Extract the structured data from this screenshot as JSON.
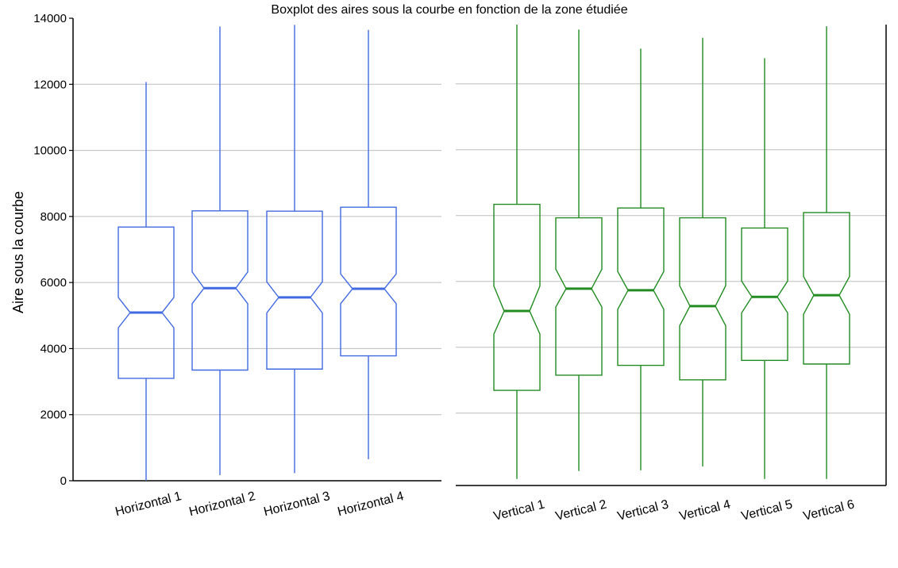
{
  "title": "Boxplot des aires sous la courbe en fonction de la zone étudiée",
  "chart_data": [
    {
      "type": "boxplot",
      "panel": "left",
      "ylabel": "Aire sous la courbe",
      "ylim": [
        0,
        14000
      ],
      "yticks": [
        "0",
        "2000",
        "4000",
        "6000",
        "8000",
        "10000",
        "12000",
        "14000"
      ],
      "grid": "horizontal",
      "color": "#4169e1",
      "notched": true,
      "boxes": [
        {
          "label": "Horizontal 1",
          "whislo": 0,
          "q1": 3100,
          "notch_lo": 4630,
          "med": 5090,
          "notch_hi": 5550,
          "q3": 7680,
          "whishi": 12070
        },
        {
          "label": "Horizontal 2",
          "whislo": 170,
          "q1": 3350,
          "notch_lo": 5360,
          "med": 5830,
          "notch_hi": 6320,
          "q3": 8170,
          "whishi": 13750
        },
        {
          "label": "Horizontal 3",
          "whislo": 230,
          "q1": 3380,
          "notch_lo": 5080,
          "med": 5550,
          "notch_hi": 6020,
          "q3": 8160,
          "whishi": 13800
        },
        {
          "label": "Horizontal 4",
          "whislo": 650,
          "q1": 3780,
          "notch_lo": 5360,
          "med": 5810,
          "notch_hi": 6260,
          "q3": 8280,
          "whishi": 13650
        }
      ]
    },
    {
      "type": "boxplot",
      "panel": "right",
      "ylim": [
        -200,
        13800
      ],
      "grid": "horizontal",
      "color": "#228b22",
      "notched": true,
      "boxes": [
        {
          "label": "Vertical 1",
          "whislo": 0,
          "q1": 2690,
          "notch_lo": 4400,
          "med": 5100,
          "notch_hi": 5860,
          "q3": 8340,
          "whishi": 13800
        },
        {
          "label": "Vertical 2",
          "whislo": 240,
          "q1": 3150,
          "notch_lo": 5220,
          "med": 5780,
          "notch_hi": 6370,
          "q3": 7930,
          "whishi": 13650
        },
        {
          "label": "Vertical 3",
          "whislo": 260,
          "q1": 3450,
          "notch_lo": 5150,
          "med": 5730,
          "notch_hi": 6300,
          "q3": 8230,
          "whishi": 13070
        },
        {
          "label": "Vertical 4",
          "whislo": 380,
          "q1": 3010,
          "notch_lo": 4650,
          "med": 5250,
          "notch_hi": 5870,
          "q3": 7930,
          "whishi": 13400
        },
        {
          "label": "Vertical 5",
          "whislo": 0,
          "q1": 3600,
          "notch_lo": 5040,
          "med": 5530,
          "notch_hi": 6010,
          "q3": 7620,
          "whishi": 12780
        },
        {
          "label": "Vertical 6",
          "whislo": 0,
          "q1": 3490,
          "notch_lo": 5000,
          "med": 5580,
          "notch_hi": 6150,
          "q3": 8090,
          "whishi": 13750
        }
      ]
    }
  ]
}
